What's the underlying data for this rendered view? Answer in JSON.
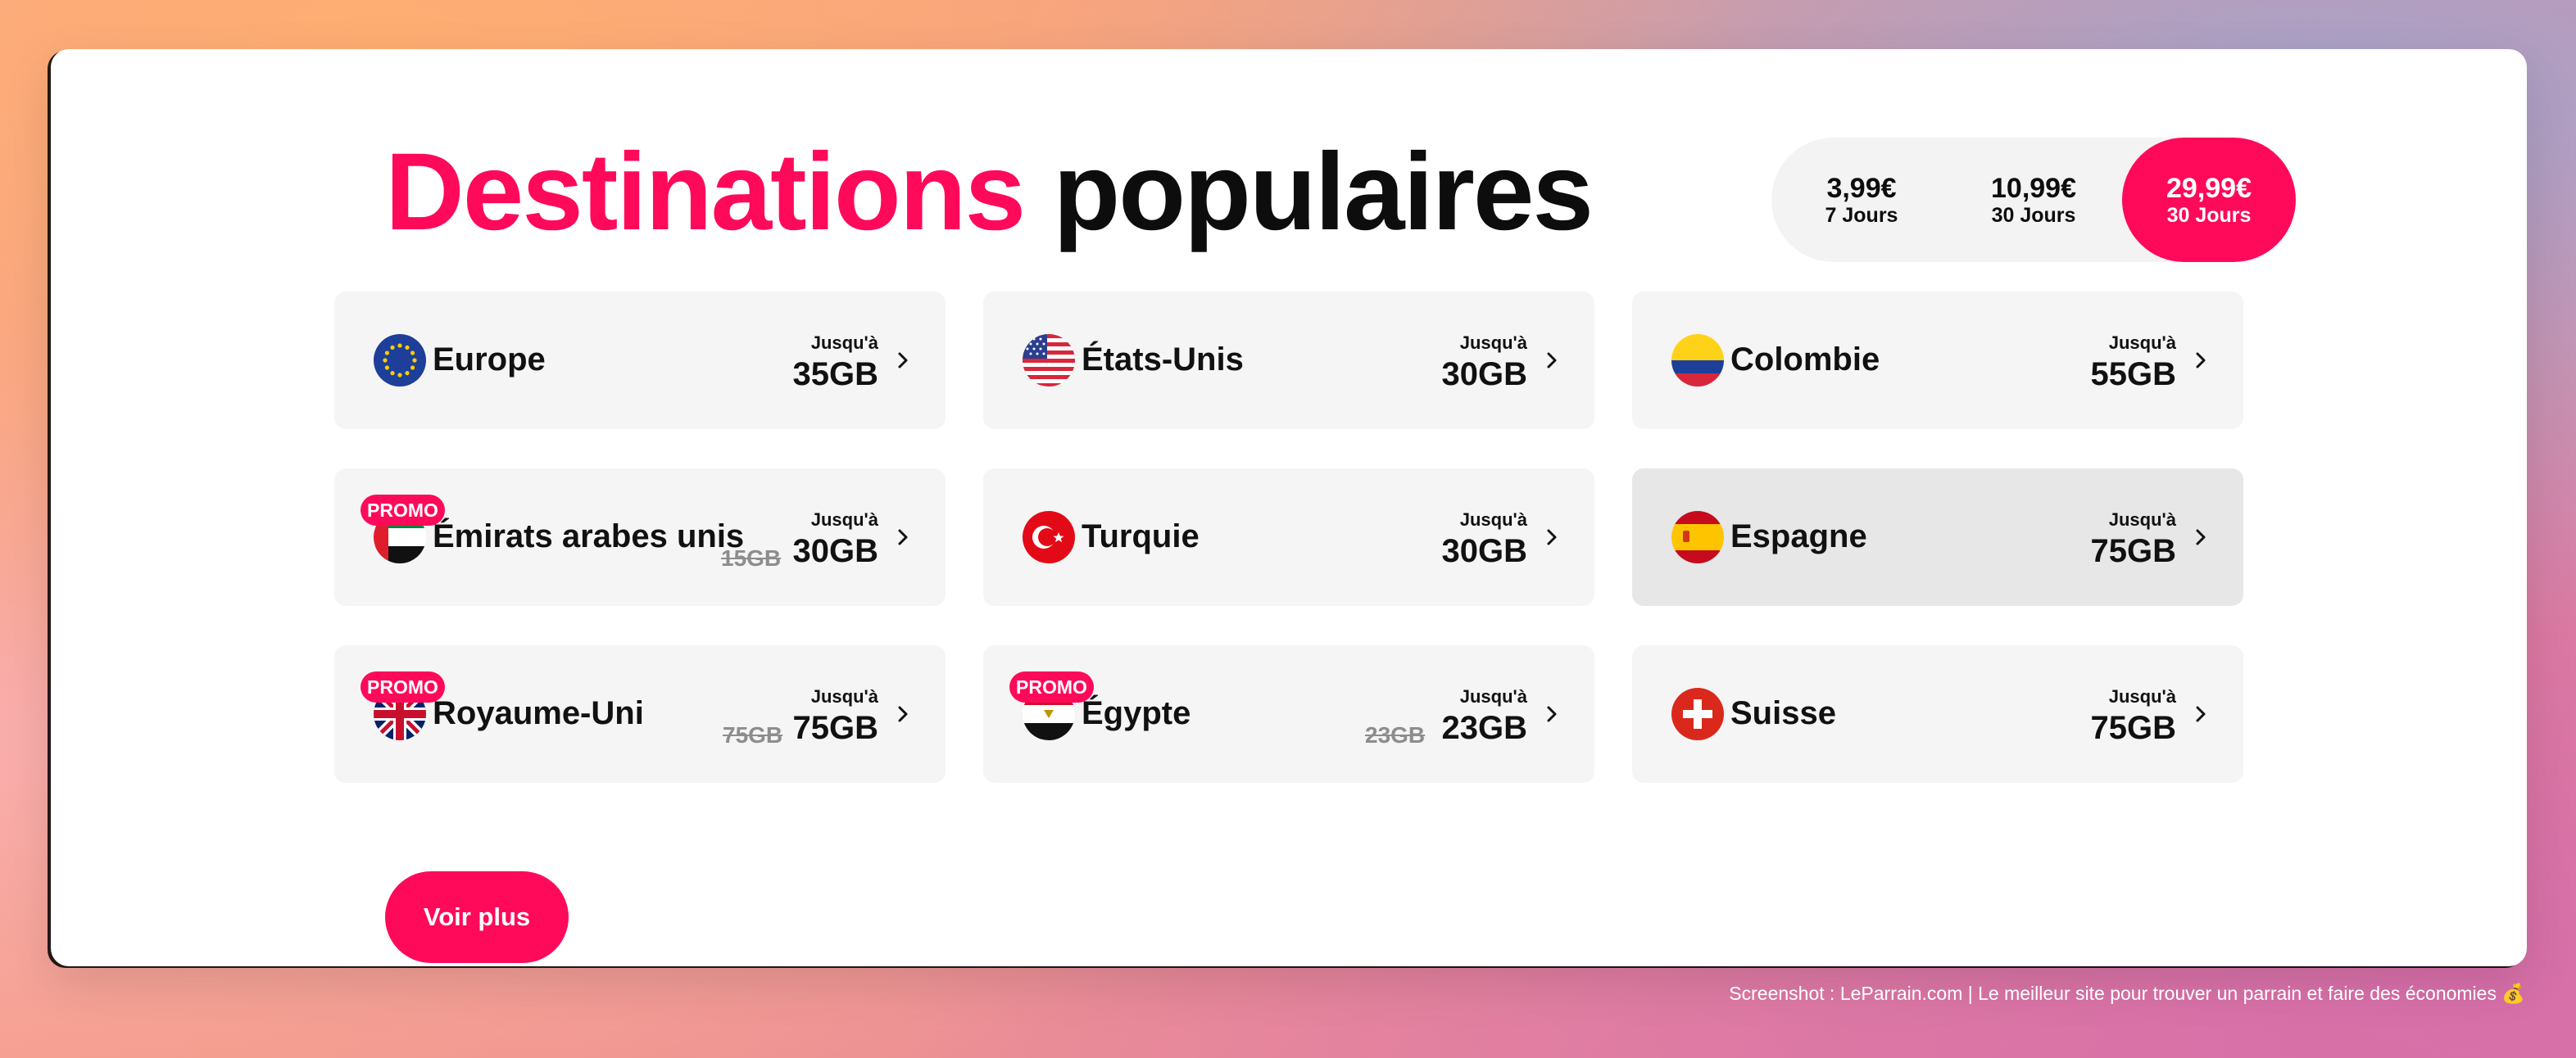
{
  "header": {
    "title_accent": "Destinations",
    "title_rest": "populaires"
  },
  "plans": [
    {
      "price": "3,99€",
      "duration": "7 Jours",
      "selected": false
    },
    {
      "price": "10,99€",
      "duration": "30 Jours",
      "selected": false
    },
    {
      "price": "29,99€",
      "duration": "30 Jours",
      "selected": true
    }
  ],
  "destinations": [
    {
      "name": "Europe",
      "upto": "Jusqu'à",
      "data": "35GB",
      "flag": "eu-flag-icon"
    },
    {
      "name": "États-Unis",
      "upto": "Jusqu'à",
      "data": "30GB",
      "flag": "usa-flag-icon"
    },
    {
      "name": "Colombie",
      "upto": "Jusqu'à",
      "data": "55GB",
      "flag": "colombia-flag-icon"
    },
    {
      "name": "Émirats arabes unis",
      "upto": "Jusqu'à",
      "data": "30GB",
      "old_data": "15GB",
      "promo": "PROMO",
      "flag": "uae-flag-icon"
    },
    {
      "name": "Turquie",
      "upto": "Jusqu'à",
      "data": "30GB",
      "flag": "turkey-flag-icon"
    },
    {
      "name": "Espagne",
      "upto": "Jusqu'à",
      "data": "75GB",
      "flag": "spain-flag-icon",
      "active": true
    },
    {
      "name": "Royaume-Uni",
      "upto": "Jusqu'à",
      "data": "75GB",
      "old_data": "75GB",
      "promo": "PROMO",
      "flag": "uk-flag-icon"
    },
    {
      "name": "Égypte",
      "upto": "Jusqu'à",
      "data": "23GB",
      "old_data": "23GB",
      "promo": "PROMO",
      "flag": "egypt-flag-icon"
    },
    {
      "name": "Suisse",
      "upto": "Jusqu'à",
      "data": "75GB",
      "flag": "switzerland-flag-icon"
    }
  ],
  "more_button": "Voir plus",
  "caption": "Screenshot : LeParrain.com | Le meilleur site pour trouver un parrain et faire des économies 💰",
  "colors": {
    "accent": "#ff0a5a",
    "card_bg": "#f5f5f5",
    "card_active_bg": "#e7e7e7"
  }
}
